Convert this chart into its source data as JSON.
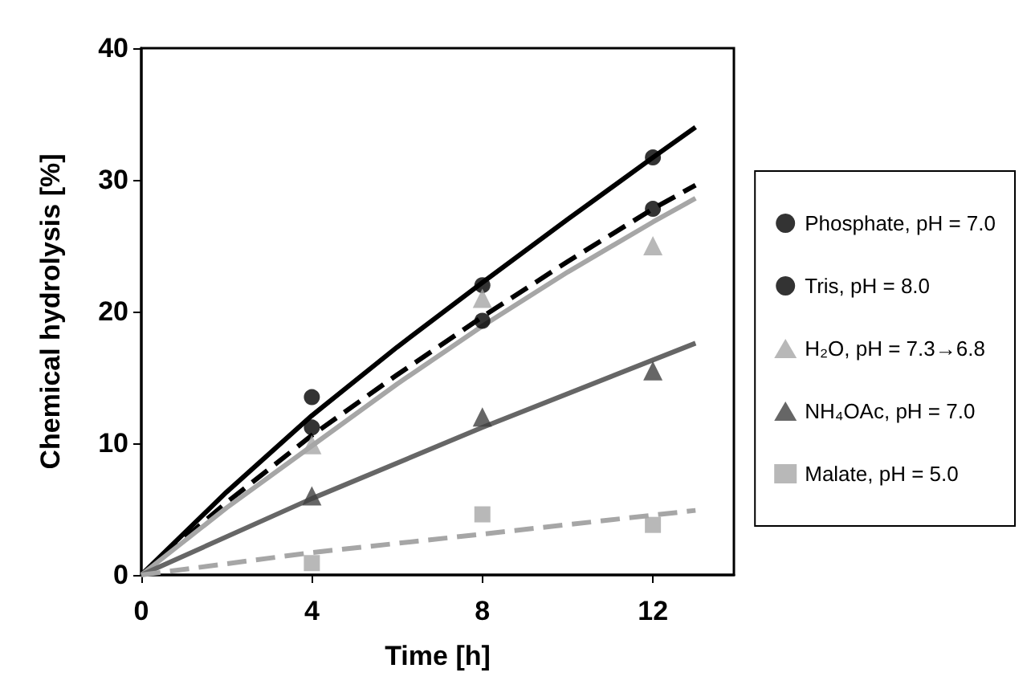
{
  "chart_data": {
    "type": "scatter",
    "xlabel": "Time [h]",
    "ylabel": "Chemical hydrolysis [%]",
    "xlim": [
      0,
      13.9
    ],
    "xticks": [
      0,
      4,
      8,
      12
    ],
    "ylim": [
      0,
      40
    ],
    "yticks": [
      0,
      10,
      20,
      30,
      40
    ],
    "grid": false,
    "legend": "right",
    "series": [
      {
        "name": "Phosphate, pH = 7.0",
        "marker": "circle",
        "color": "#000000",
        "x": [
          4,
          8,
          12
        ],
        "values": [
          13.5,
          22,
          31.7
        ]
      },
      {
        "name": "Tris, pH = 8.0",
        "marker": "circle",
        "color": "#000000",
        "x": [
          4,
          8,
          12
        ],
        "values": [
          11.2,
          19.3,
          27.8
        ]
      },
      {
        "name": "H₂O, pH = 7.3→6.8",
        "marker": "triangle",
        "color": "#a6a6a6",
        "x": [
          4,
          8,
          12
        ],
        "values": [
          9.9,
          21,
          25
        ]
      },
      {
        "name": "NH₄OAc, pH = 7.0",
        "marker": "triangle",
        "color": "#404040",
        "x": [
          4,
          8,
          12
        ],
        "values": [
          6,
          12,
          15.5
        ]
      },
      {
        "name": "Malate, pH = 5.0",
        "marker": "square",
        "color": "#a6a6a6",
        "x": [
          4,
          8,
          12
        ],
        "values": [
          0.9,
          4.6,
          3.8
        ]
      },
      {
        "type": "line",
        "line_style": "solid",
        "color": "#000000",
        "x": [
          0,
          2,
          4,
          6,
          8,
          10,
          12,
          13
        ],
        "values": [
          0,
          6.3,
          12.1,
          17.3,
          22.2,
          27,
          31.7,
          34
        ]
      },
      {
        "type": "line",
        "line_style": "dashed",
        "color": "#000000",
        "x": [
          0,
          2,
          4,
          6,
          8,
          10,
          12,
          13
        ],
        "values": [
          0,
          5.5,
          10.6,
          15.2,
          19.6,
          23.8,
          27.8,
          29.6
        ]
      },
      {
        "type": "line",
        "line_style": "solid",
        "color": "#a6a6a6",
        "x": [
          0,
          2,
          4,
          6,
          8,
          10,
          12,
          13
        ],
        "values": [
          0,
          5.1,
          9.8,
          14.5,
          18.9,
          23,
          26.8,
          28.6
        ]
      },
      {
        "type": "line",
        "line_style": "solid",
        "color": "#666666",
        "x": [
          0,
          4,
          8,
          13
        ],
        "values": [
          0,
          5.8,
          11.2,
          17.6
        ]
      },
      {
        "type": "line",
        "line_style": "dashed",
        "color": "#a6a6a6",
        "x": [
          0,
          4,
          8,
          13
        ],
        "values": [
          0,
          1.7,
          3.1,
          4.9
        ]
      }
    ]
  }
}
